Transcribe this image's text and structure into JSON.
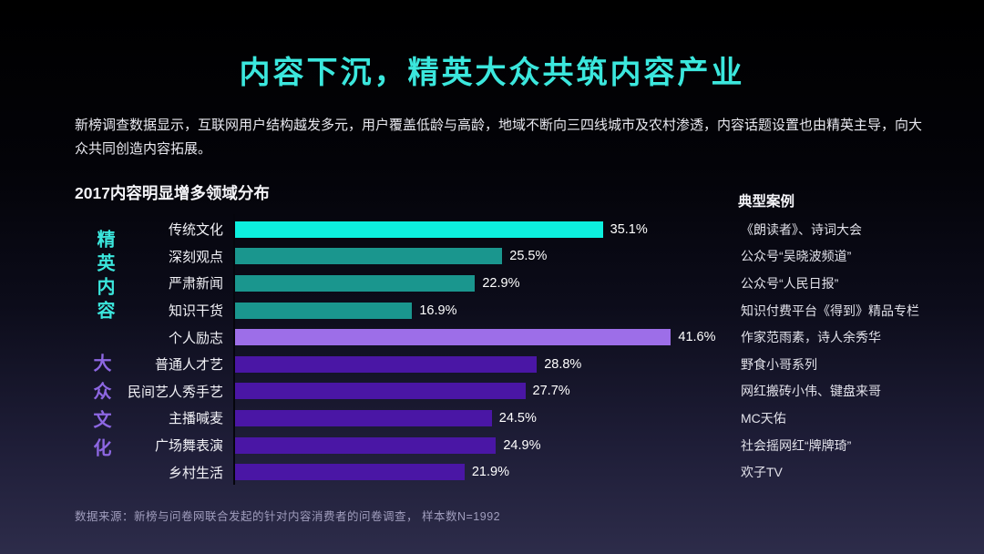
{
  "title": "内容下沉，精英大众共筑内容产业",
  "intro": "新榜调查数据显示，互联网用户结构越发多元，用户覆盖低龄与高龄，地域不断向三四线城市及农村渗透，内容话题设置也由精英主导，向大众共同创造内容拓展。",
  "chart_title": "2017内容明显增多领域分布",
  "cases_header": "典型案例",
  "source": "数据来源：新榜与问卷网联合发起的针对内容消费者的问卷调查， 样本数N=1992",
  "groups": [
    {
      "label": "精英内容",
      "color": "#3be7dd"
    },
    {
      "label": "大众文化",
      "color": "#8d67e2"
    }
  ],
  "colors": {
    "title_accent": "#3be7dd",
    "bar_highlight_elite": "#0df0de",
    "bar_elite": "#1a968e",
    "bar_highlight_mass": "#9d6ee8",
    "bar_mass": "#4a16a5",
    "background_top": "#000000",
    "background_bottom": "#2d2c4a"
  },
  "chart_data": {
    "type": "bar",
    "orientation": "horizontal",
    "title": "2017内容明显增多领域分布",
    "xlabel": "",
    "ylabel": "",
    "xlim": [
      0,
      45
    ],
    "grid": false,
    "legend_position": "left-vertical",
    "legend": [
      "精英内容",
      "大众文化"
    ],
    "categories": [
      "传统文化",
      "深刻观点",
      "严肃新闻",
      "知识干货",
      "个人励志",
      "普通人才艺",
      "民间艺人秀手艺",
      "主播喊麦",
      "广场舞表演",
      "乡村生活"
    ],
    "values": [
      35.1,
      25.5,
      22.9,
      16.9,
      41.6,
      28.8,
      27.7,
      24.5,
      24.9,
      21.9
    ],
    "value_labels": [
      "35.1%",
      "25.5%",
      "22.9%",
      "16.9%",
      "41.6%",
      "28.8%",
      "27.7%",
      "24.5%",
      "24.9%",
      "21.9%"
    ],
    "bar_colors": [
      "#0df0de",
      "#1a968e",
      "#1a968e",
      "#1a968e",
      "#9d6ee8",
      "#4a16a5",
      "#4a16a5",
      "#4a16a5",
      "#4a16a5",
      "#4a16a5"
    ],
    "group_of_category": [
      "精英内容",
      "精英内容",
      "精英内容",
      "精英内容",
      "大众文化",
      "大众文化",
      "大众文化",
      "大众文化",
      "大众文化",
      "大众文化"
    ],
    "cases": [
      "《朗读者》、诗词大会",
      "公众号“吴晓波频道”",
      "公众号“人民日报”",
      "知识付费平台《得到》精品专栏",
      "作家范雨素，诗人余秀华",
      "野食小哥系列",
      "网红搬砖小伟、键盘来哥",
      "MC天佑",
      "社会摇网红“牌牌琦”",
      "欢子TV"
    ]
  }
}
